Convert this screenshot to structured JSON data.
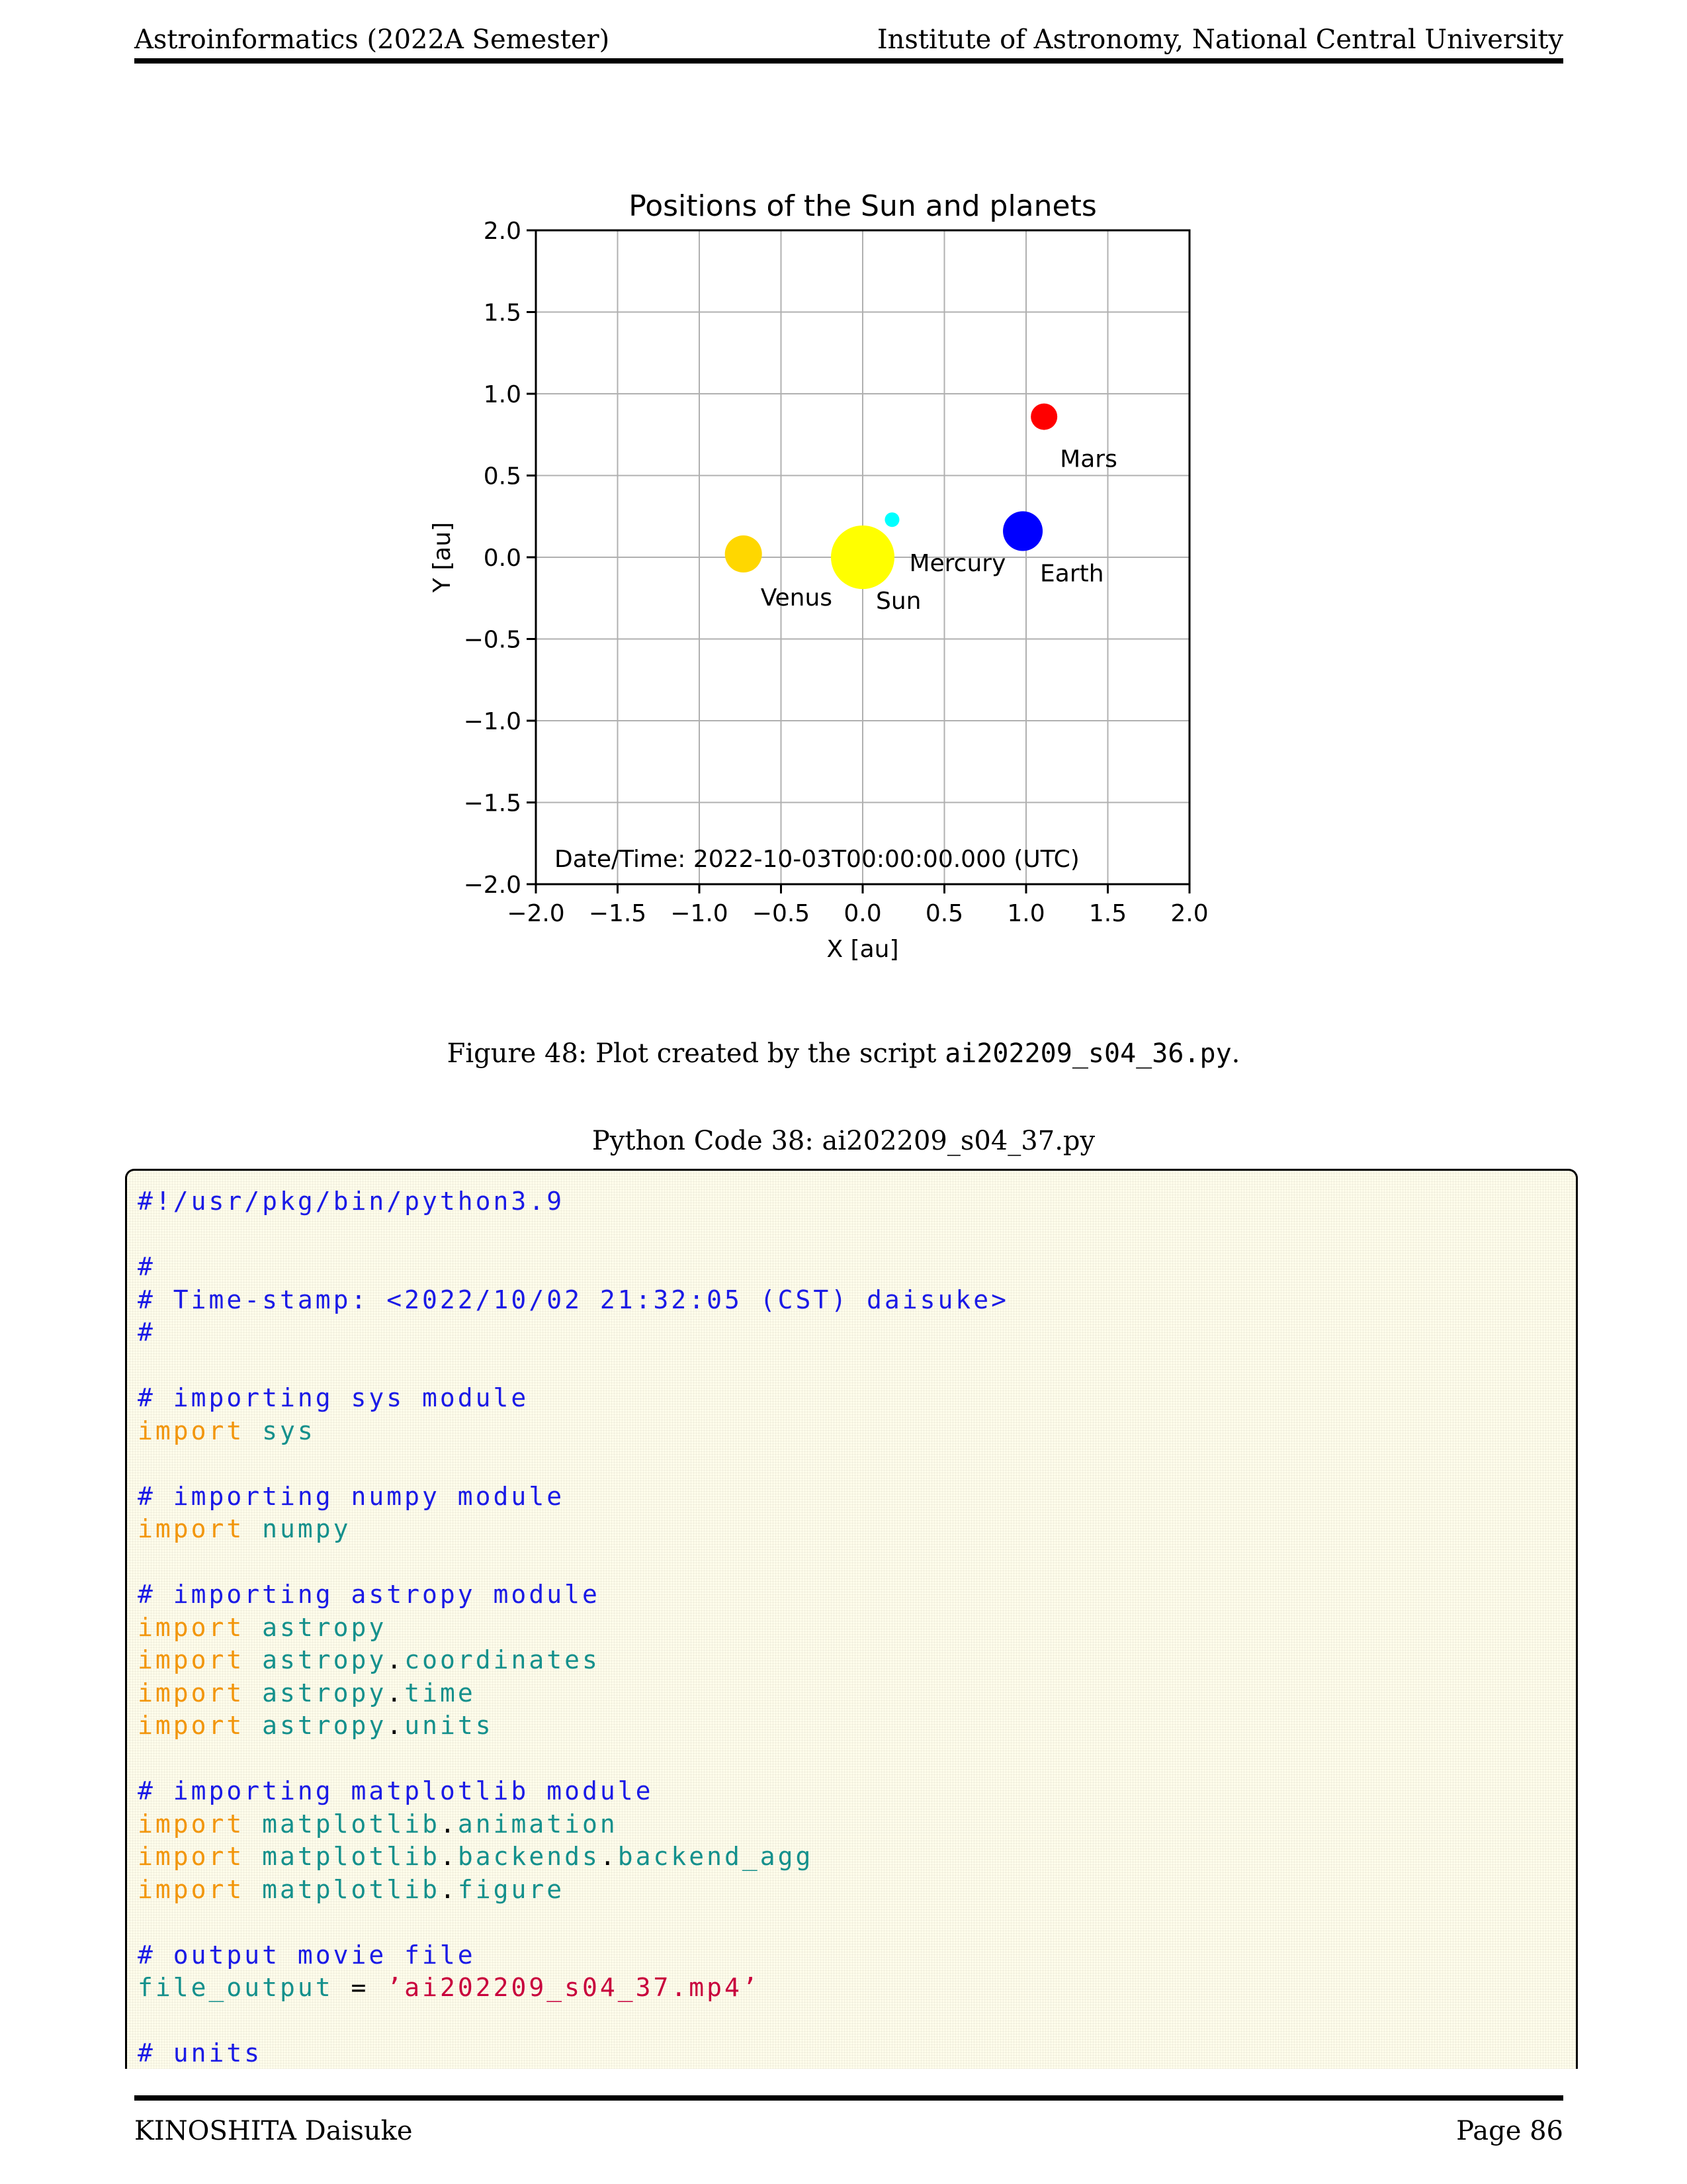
{
  "page_header": {
    "left": "Astroinformatics (2022A Semester)",
    "right": "Institute of Astronomy, National Central University"
  },
  "page_footer": {
    "left": "KINOSHITA Daisuke",
    "right": "Page 86"
  },
  "chart_data": {
    "type": "scatter",
    "title": "Positions of the Sun and planets",
    "xlabel": "X [au]",
    "ylabel": "Y [au]",
    "xlim": [
      -2.0,
      2.0
    ],
    "ylim": [
      -2.0,
      2.0
    ],
    "xticks": [
      "−2.0",
      "−1.5",
      "−1.0",
      "−0.5",
      "0.0",
      "0.5",
      "1.0",
      "1.5",
      "2.0"
    ],
    "yticks": [
      "−2.0",
      "−1.5",
      "−1.0",
      "−0.5",
      "0.0",
      "0.5",
      "1.0",
      "1.5",
      "2.0"
    ],
    "grid": true,
    "annotation": "Date/Time: 2022-10-03T00:00:00.000 (UTC)",
    "points": [
      {
        "name": "Sun",
        "x": 0.0,
        "y": 0.0,
        "color": "#ffff00"
      },
      {
        "name": "Mercury",
        "x": 0.18,
        "y": 0.23,
        "color": "#00ffff"
      },
      {
        "name": "Venus",
        "x": -0.73,
        "y": 0.02,
        "color": "#ffd700"
      },
      {
        "name": "Earth",
        "x": 0.98,
        "y": 0.16,
        "color": "#0000ff"
      },
      {
        "name": "Mars",
        "x": 1.11,
        "y": 0.86,
        "color": "#ff0000"
      }
    ]
  },
  "figure_caption": {
    "prefix": "Figure 48: Plot created by the script ",
    "script": "ai202209_s04_36.py",
    "suffix": "."
  },
  "code_listing": {
    "title": "Python Code 38: ai202209_s04_37.py",
    "lines": [
      [
        {
          "t": "c",
          "v": "#!/usr/pkg/bin/python3.9"
        }
      ],
      [],
      [
        {
          "t": "c",
          "v": "#"
        }
      ],
      [
        {
          "t": "c",
          "v": "# Time-stamp: <2022/10/02 21:32:05 (CST) daisuke>"
        }
      ],
      [
        {
          "t": "c",
          "v": "#"
        }
      ],
      [],
      [
        {
          "t": "c",
          "v": "# importing sys module"
        }
      ],
      [
        {
          "t": "k",
          "v": "import"
        },
        {
          "t": "o",
          "v": " "
        },
        {
          "t": "i",
          "v": "sys"
        }
      ],
      [],
      [
        {
          "t": "c",
          "v": "# importing numpy module"
        }
      ],
      [
        {
          "t": "k",
          "v": "import"
        },
        {
          "t": "o",
          "v": " "
        },
        {
          "t": "i",
          "v": "numpy"
        }
      ],
      [],
      [
        {
          "t": "c",
          "v": "# importing astropy module"
        }
      ],
      [
        {
          "t": "k",
          "v": "import"
        },
        {
          "t": "o",
          "v": " "
        },
        {
          "t": "i",
          "v": "astropy"
        }
      ],
      [
        {
          "t": "k",
          "v": "import"
        },
        {
          "t": "o",
          "v": " "
        },
        {
          "t": "i",
          "v": "astropy"
        },
        {
          "t": "o",
          "v": "."
        },
        {
          "t": "i",
          "v": "coordinates"
        }
      ],
      [
        {
          "t": "k",
          "v": "import"
        },
        {
          "t": "o",
          "v": " "
        },
        {
          "t": "i",
          "v": "astropy"
        },
        {
          "t": "o",
          "v": "."
        },
        {
          "t": "i",
          "v": "time"
        }
      ],
      [
        {
          "t": "k",
          "v": "import"
        },
        {
          "t": "o",
          "v": " "
        },
        {
          "t": "i",
          "v": "astropy"
        },
        {
          "t": "o",
          "v": "."
        },
        {
          "t": "i",
          "v": "units"
        }
      ],
      [],
      [
        {
          "t": "c",
          "v": "# importing matplotlib module"
        }
      ],
      [
        {
          "t": "k",
          "v": "import"
        },
        {
          "t": "o",
          "v": " "
        },
        {
          "t": "i",
          "v": "matplotlib"
        },
        {
          "t": "o",
          "v": "."
        },
        {
          "t": "i",
          "v": "animation"
        }
      ],
      [
        {
          "t": "k",
          "v": "import"
        },
        {
          "t": "o",
          "v": " "
        },
        {
          "t": "i",
          "v": "matplotlib"
        },
        {
          "t": "o",
          "v": "."
        },
        {
          "t": "i",
          "v": "backends"
        },
        {
          "t": "o",
          "v": "."
        },
        {
          "t": "i",
          "v": "backend_agg"
        }
      ],
      [
        {
          "t": "k",
          "v": "import"
        },
        {
          "t": "o",
          "v": " "
        },
        {
          "t": "i",
          "v": "matplotlib"
        },
        {
          "t": "o",
          "v": "."
        },
        {
          "t": "i",
          "v": "figure"
        }
      ],
      [],
      [
        {
          "t": "c",
          "v": "# output movie file"
        }
      ],
      [
        {
          "t": "i",
          "v": "file_output"
        },
        {
          "t": "o",
          "v": " = "
        },
        {
          "t": "s",
          "v": "’ai202209_s04_37.mp4’"
        }
      ],
      [],
      [
        {
          "t": "c",
          "v": "# units"
        }
      ]
    ]
  },
  "colors": {
    "code_comment": "#1a1ae6",
    "code_keyword": "#f2960c",
    "code_identifier": "#14908c",
    "code_string": "#c8003c",
    "code_background": "#fffdeb"
  }
}
